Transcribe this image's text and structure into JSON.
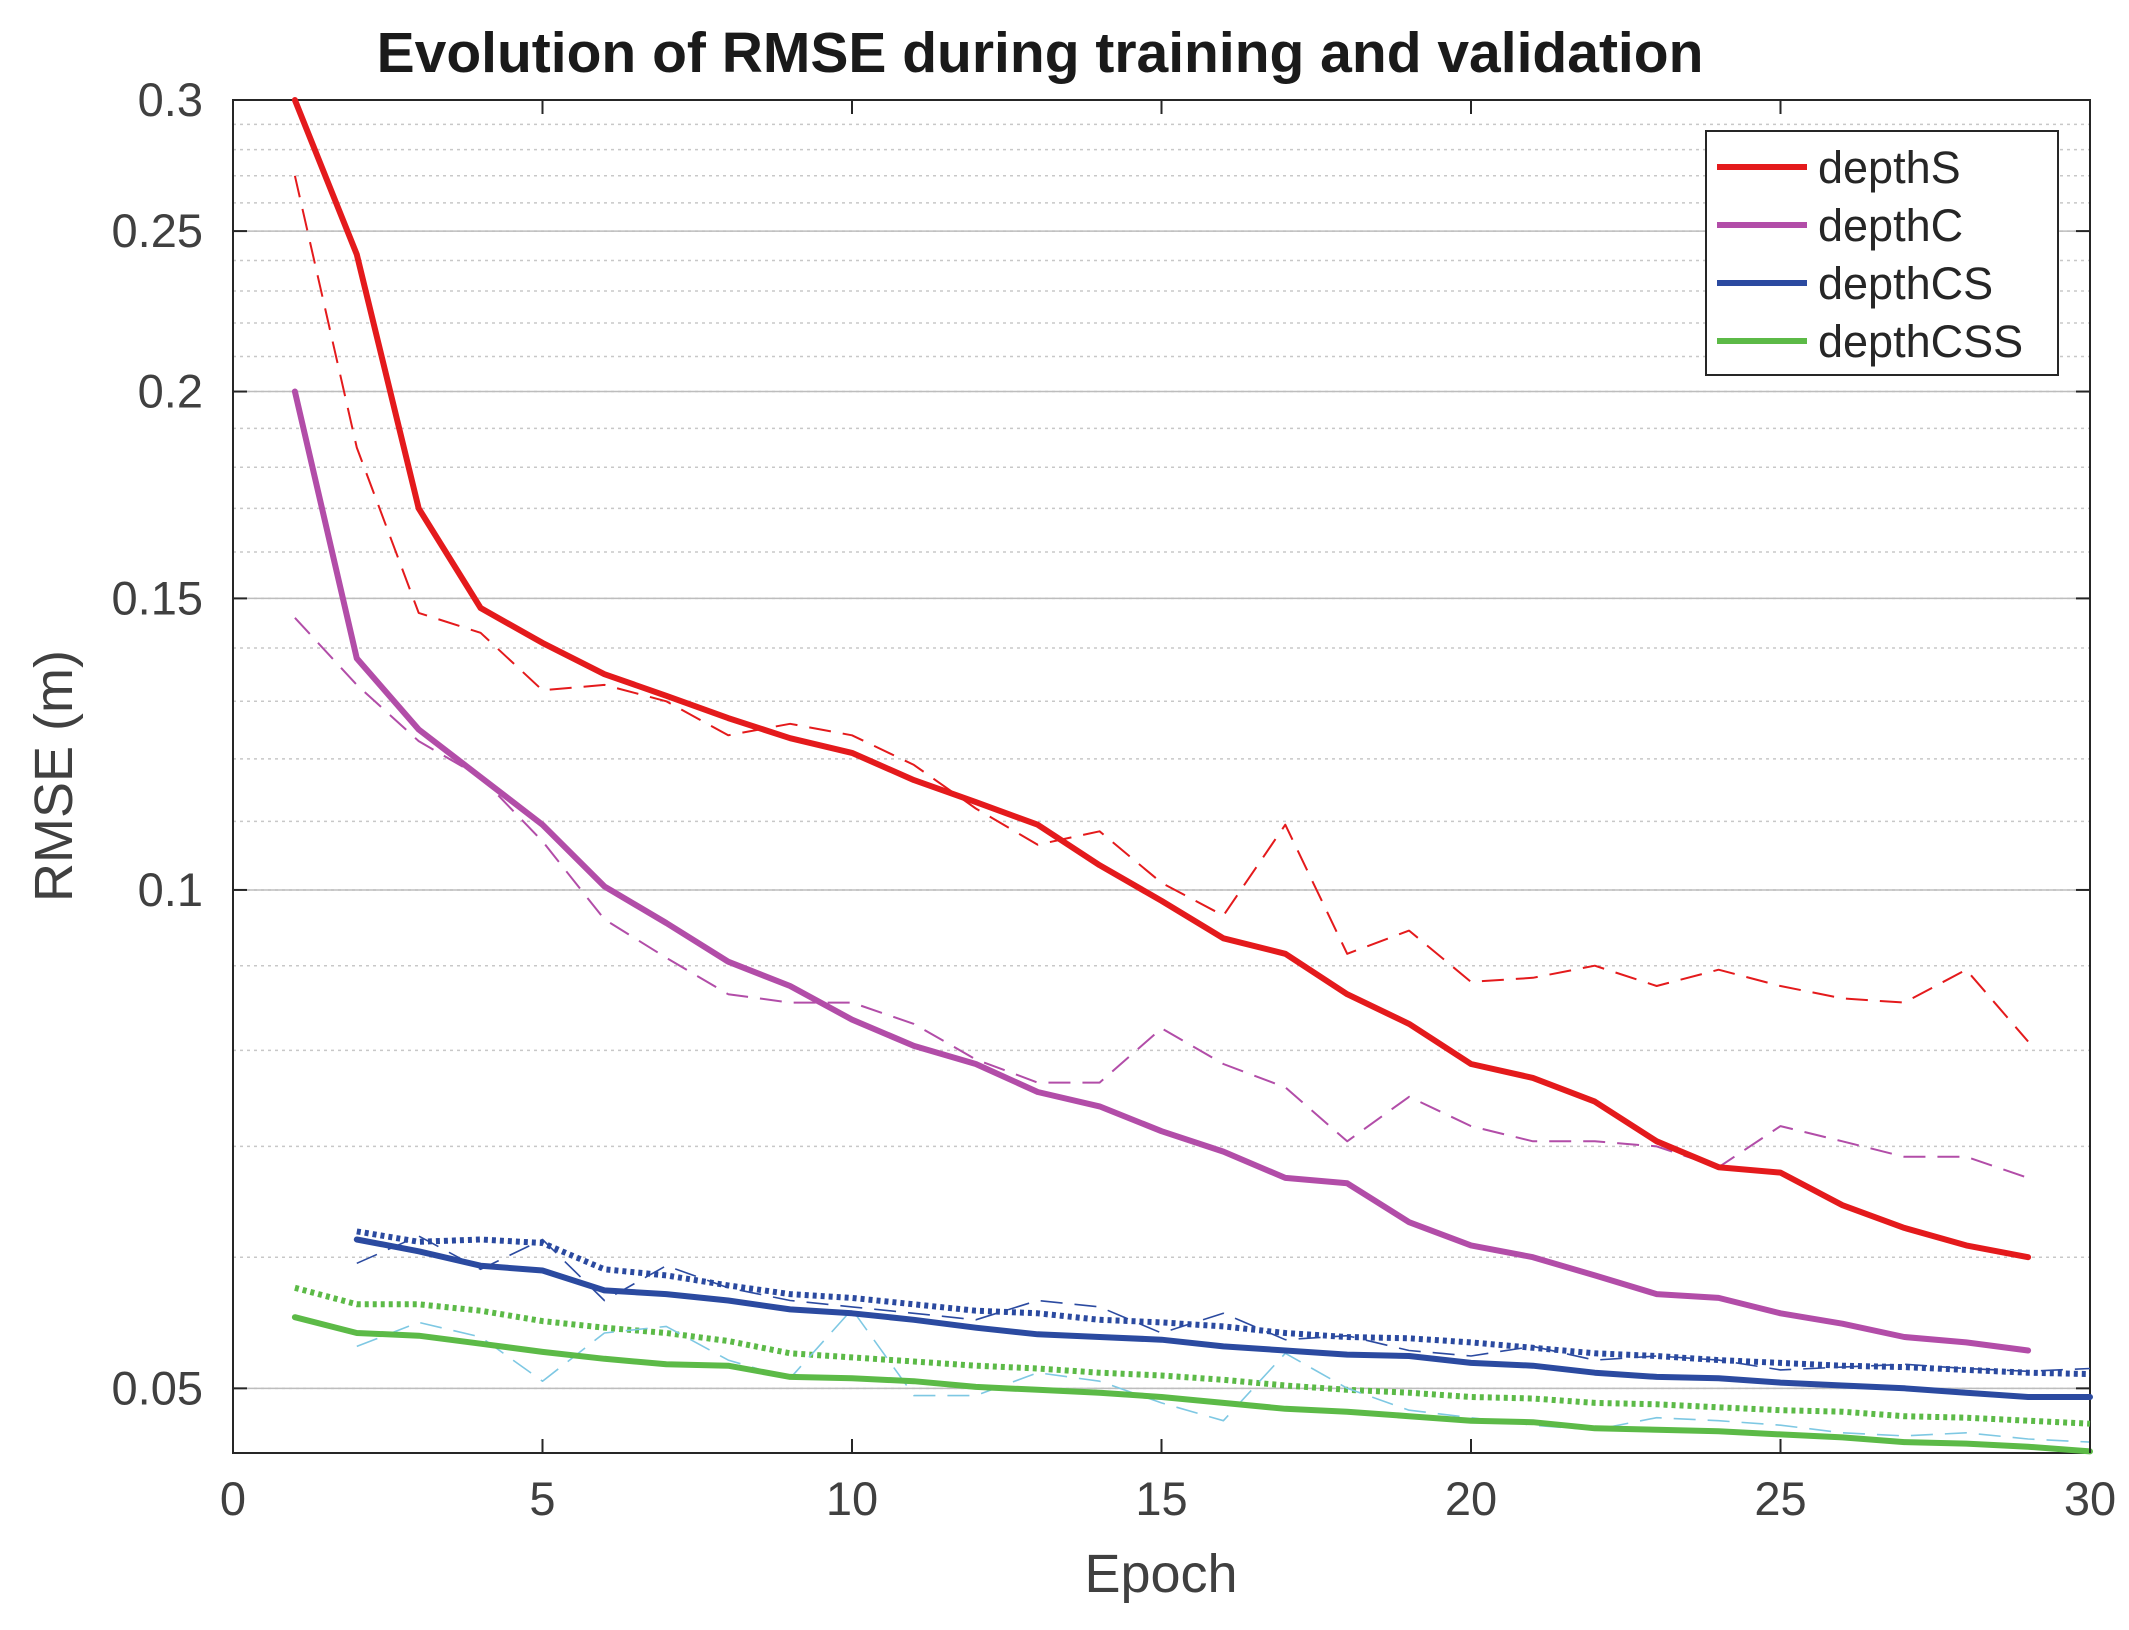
{
  "chart_data": {
    "type": "line",
    "title": "Evolution of RMSE during training and validation",
    "xlabel": "Epoch",
    "ylabel": "RMSE (m)",
    "xlim": [
      0,
      30
    ],
    "ylim": [
      0.0457,
      0.3
    ],
    "yscale": "log",
    "grid": true,
    "xticks": [
      0,
      5,
      10,
      15,
      20,
      25,
      30
    ],
    "xtick_labels": [
      "0",
      "5",
      "10",
      "15",
      "20",
      "25",
      "30"
    ],
    "yticks": [
      0.05,
      0.1,
      0.15,
      0.2,
      0.25,
      0.3
    ],
    "ytick_labels": [
      "0.05",
      "0.1",
      "0.15",
      "0.2",
      "0.25",
      "0.3"
    ],
    "legend_position": "top-right",
    "legend": [
      "depthS",
      "depthC",
      "depthCS",
      "depthCSS"
    ],
    "series": [
      {
        "name": "depthS",
        "color": "#e41a1c",
        "in_legend": true,
        "style": "solid",
        "x": [
          1,
          2,
          3,
          4,
          5,
          6,
          7,
          8,
          9,
          10,
          11,
          12,
          13,
          14,
          15,
          16,
          17,
          18,
          19,
          20,
          21,
          22,
          23,
          24,
          25,
          26,
          27,
          28,
          29
        ],
        "values": [
          0.3,
          0.242,
          0.17,
          0.148,
          0.141,
          0.135,
          0.131,
          0.127,
          0.1235,
          0.121,
          0.1165,
          0.113,
          0.1095,
          0.1035,
          0.0985,
          0.0935,
          0.0915,
          0.0865,
          0.083,
          0.0785,
          0.077,
          0.0745,
          0.0705,
          0.068,
          0.0675,
          0.0645,
          0.0625,
          0.061,
          0.06
        ]
      },
      {
        "name": "depthS validation",
        "color": "#e41a1c",
        "in_legend": false,
        "style": "dashed",
        "x": [
          1,
          2,
          3,
          4,
          5,
          6,
          7,
          8,
          9,
          10,
          11,
          12,
          13,
          14,
          15,
          16,
          17,
          18,
          19,
          20,
          21,
          22,
          23,
          24,
          25,
          26,
          27,
          28,
          29
        ],
        "values": [
          0.27,
          0.185,
          0.147,
          0.143,
          0.132,
          0.133,
          0.13,
          0.124,
          0.126,
          0.124,
          0.119,
          0.112,
          0.1065,
          0.1085,
          0.101,
          0.0965,
          0.1095,
          0.0915,
          0.0945,
          0.088,
          0.0885,
          0.09,
          0.0875,
          0.0895,
          0.0875,
          0.086,
          0.0855,
          0.0895,
          0.081
        ]
      },
      {
        "name": "depthC",
        "color": "#b24da8",
        "in_legend": true,
        "style": "solid",
        "x": [
          1,
          2,
          3,
          4,
          5,
          6,
          7,
          8,
          9,
          10,
          11,
          12,
          13,
          14,
          15,
          16,
          17,
          18,
          19,
          20,
          21,
          22,
          23,
          24,
          25,
          26,
          27,
          28,
          29
        ],
        "values": [
          0.2,
          0.138,
          0.125,
          0.117,
          0.1095,
          0.1005,
          0.0955,
          0.0905,
          0.0875,
          0.0835,
          0.0805,
          0.0785,
          0.0755,
          0.074,
          0.0715,
          0.0695,
          0.067,
          0.0665,
          0.063,
          0.061,
          0.06,
          0.0585,
          0.057,
          0.0567,
          0.0555,
          0.0547,
          0.0537,
          0.0533,
          0.0527
        ]
      },
      {
        "name": "depthC validation",
        "color": "#b24da8",
        "in_legend": false,
        "style": "dashed",
        "x": [
          1,
          2,
          3,
          4,
          5,
          6,
          7,
          8,
          9,
          10,
          11,
          12,
          13,
          14,
          15,
          16,
          17,
          18,
          19,
          20,
          21,
          22,
          23,
          24,
          25,
          26,
          27,
          28,
          29
        ],
        "values": [
          0.146,
          0.133,
          0.123,
          0.117,
          0.107,
          0.096,
          0.091,
          0.0865,
          0.0855,
          0.0855,
          0.083,
          0.079,
          0.0765,
          0.0765,
          0.0825,
          0.0785,
          0.076,
          0.0705,
          0.075,
          0.072,
          0.0705,
          0.0705,
          0.07,
          0.068,
          0.072,
          0.0705,
          0.069,
          0.069,
          0.067
        ]
      },
      {
        "name": "depthCS",
        "color": "#2b4aa0",
        "in_legend": true,
        "style": "solid",
        "x": [
          2,
          3,
          4,
          5,
          6,
          7,
          8,
          9,
          10,
          11,
          12,
          13,
          14,
          15,
          16,
          17,
          18,
          19,
          20,
          21,
          22,
          23,
          24,
          25,
          26,
          27,
          28,
          29,
          30
        ],
        "values": [
          0.0615,
          0.0605,
          0.0593,
          0.0589,
          0.0573,
          0.057,
          0.0565,
          0.0558,
          0.0555,
          0.055,
          0.0544,
          0.0539,
          0.0537,
          0.0535,
          0.053,
          0.0527,
          0.0524,
          0.0523,
          0.0518,
          0.0516,
          0.0511,
          0.0508,
          0.0507,
          0.0504,
          0.0502,
          0.05,
          0.0497,
          0.0494,
          0.0494
        ]
      },
      {
        "name": "depthCS validation",
        "color": "#2b4aa0",
        "in_legend": false,
        "style": "dotted",
        "x": [
          2,
          3,
          4,
          5,
          6,
          7,
          8,
          9,
          10,
          11,
          12,
          13,
          14,
          15,
          16,
          17,
          18,
          19,
          20,
          21,
          22,
          23,
          24,
          25,
          26,
          27,
          28,
          29,
          30
        ],
        "values": [
          0.0622,
          0.0613,
          0.0615,
          0.0612,
          0.059,
          0.0585,
          0.0577,
          0.057,
          0.0567,
          0.0562,
          0.0557,
          0.0555,
          0.055,
          0.0548,
          0.0545,
          0.054,
          0.0537,
          0.0536,
          0.0533,
          0.0529,
          0.0525,
          0.0523,
          0.052,
          0.0518,
          0.0516,
          0.0515,
          0.0513,
          0.0511,
          0.051
        ]
      },
      {
        "name": "depthCS validation (noisy)",
        "color": "#2b4aa0",
        "in_legend": false,
        "style": "dashed-thin",
        "x": [
          2,
          3,
          4,
          5,
          6,
          7,
          8,
          9,
          10,
          11,
          12,
          13,
          14,
          15,
          16,
          17,
          18,
          19,
          20,
          21,
          22,
          23,
          24,
          25,
          26,
          27,
          28,
          29,
          30
        ],
        "values": [
          0.0595,
          0.0618,
          0.059,
          0.0615,
          0.0565,
          0.0593,
          0.0575,
          0.0565,
          0.056,
          0.0555,
          0.055,
          0.0565,
          0.056,
          0.054,
          0.0555,
          0.0535,
          0.0538,
          0.0527,
          0.0523,
          0.053,
          0.052,
          0.0523,
          0.052,
          0.0513,
          0.0515,
          0.0517,
          0.0514,
          0.0512,
          0.0514
        ]
      },
      {
        "name": "depthCSS",
        "color": "#5cba47",
        "in_legend": true,
        "style": "solid",
        "x": [
          1,
          2,
          3,
          4,
          5,
          6,
          7,
          8,
          9,
          10,
          11,
          12,
          13,
          14,
          15,
          16,
          17,
          18,
          19,
          20,
          21,
          22,
          23,
          24,
          25,
          26,
          27,
          28,
          29,
          30
        ],
        "values": [
          0.0552,
          0.054,
          0.0538,
          0.0532,
          0.0526,
          0.0521,
          0.0517,
          0.0516,
          0.0508,
          0.0507,
          0.0505,
          0.0501,
          0.0499,
          0.0497,
          0.0494,
          0.049,
          0.0486,
          0.0484,
          0.0481,
          0.0478,
          0.0477,
          0.0473,
          0.0472,
          0.0471,
          0.0469,
          0.0467,
          0.0464,
          0.0463,
          0.0461,
          0.0458
        ]
      },
      {
        "name": "depthCSS validation",
        "color": "#5cba47",
        "in_legend": false,
        "style": "dotted",
        "x": [
          1,
          2,
          3,
          4,
          5,
          6,
          7,
          8,
          9,
          10,
          11,
          12,
          13,
          14,
          15,
          16,
          17,
          18,
          19,
          20,
          21,
          22,
          23,
          24,
          25,
          26,
          27,
          28,
          29,
          30
        ],
        "values": [
          0.0575,
          0.0562,
          0.0562,
          0.0557,
          0.0549,
          0.0544,
          0.054,
          0.0534,
          0.0525,
          0.0522,
          0.0519,
          0.0516,
          0.0514,
          0.0511,
          0.0509,
          0.0506,
          0.0502,
          0.0499,
          0.0497,
          0.0494,
          0.0493,
          0.049,
          0.0489,
          0.0487,
          0.0485,
          0.0484,
          0.0481,
          0.048,
          0.0478,
          0.0476
        ]
      },
      {
        "name": "depthCSS validation (noisy)",
        "color": "#7ec8e3",
        "in_legend": false,
        "style": "dashed-thin",
        "x": [
          2,
          3,
          4,
          5,
          6,
          7,
          8,
          9,
          10,
          11,
          12,
          13,
          14,
          15,
          16,
          17,
          18,
          19,
          20,
          21,
          22,
          23,
          24,
          25,
          26,
          27,
          28,
          29,
          30
        ],
        "values": [
          0.053,
          0.0548,
          0.0537,
          0.0505,
          0.054,
          0.0545,
          0.052,
          0.0507,
          0.0558,
          0.0495,
          0.0495,
          0.0511,
          0.0505,
          0.049,
          0.0478,
          0.0525,
          0.05,
          0.0485,
          0.048,
          0.0475,
          0.0472,
          0.048,
          0.0478,
          0.0475,
          0.047,
          0.0468,
          0.047,
          0.0466,
          0.0464
        ]
      }
    ]
  }
}
